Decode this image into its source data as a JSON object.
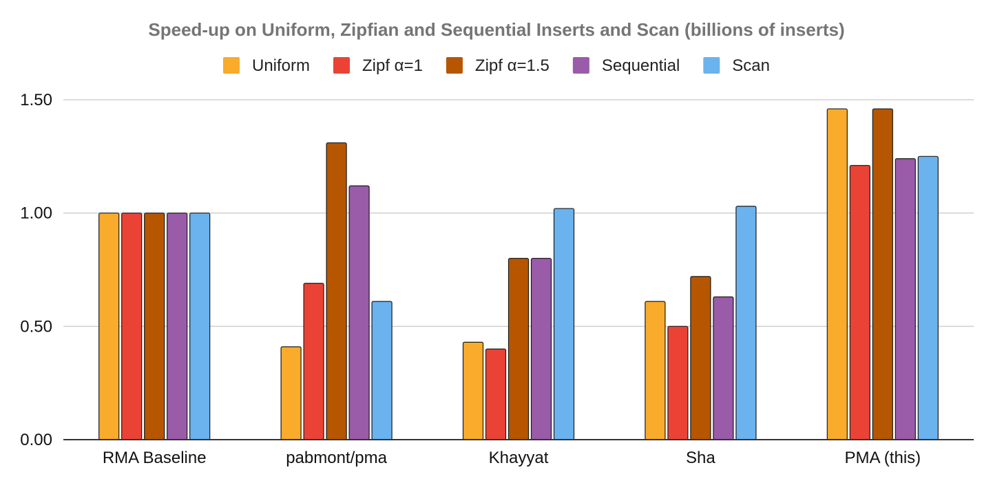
{
  "chart_data": {
    "type": "bar",
    "title": "Speed-up on Uniform, Zipfian and Sequential Inserts and Scan (billions of inserts)",
    "xlabel": "",
    "ylabel": "",
    "legend_position": "top",
    "grid": true,
    "ylim": [
      0,
      1.5
    ],
    "yticks": [
      0,
      0.5,
      1.0,
      1.5
    ],
    "ytick_labels": [
      "0.00",
      "0.50",
      "1.00",
      "1.50"
    ],
    "categories": [
      "RMA Baseline",
      "pabmont/pma",
      "Khayyat",
      "Sha",
      "PMA (this)"
    ],
    "series": [
      {
        "name": "Uniform",
        "color": "#f9ab2b",
        "values": [
          1.0,
          0.41,
          0.43,
          0.61,
          1.46
        ]
      },
      {
        "name": "Zipf α=1",
        "color": "#ea4336",
        "values": [
          1.0,
          0.69,
          0.4,
          0.5,
          1.21
        ]
      },
      {
        "name": "Zipf α=1.5",
        "color": "#b75600",
        "values": [
          1.0,
          1.31,
          0.8,
          0.72,
          1.46
        ]
      },
      {
        "name": "Sequential",
        "color": "#9a5ba8",
        "values": [
          1.0,
          1.12,
          0.8,
          0.63,
          1.24
        ]
      },
      {
        "name": "Scan",
        "color": "#6ab3ef",
        "values": [
          1.0,
          0.61,
          1.02,
          1.03,
          1.25
        ]
      }
    ]
  }
}
